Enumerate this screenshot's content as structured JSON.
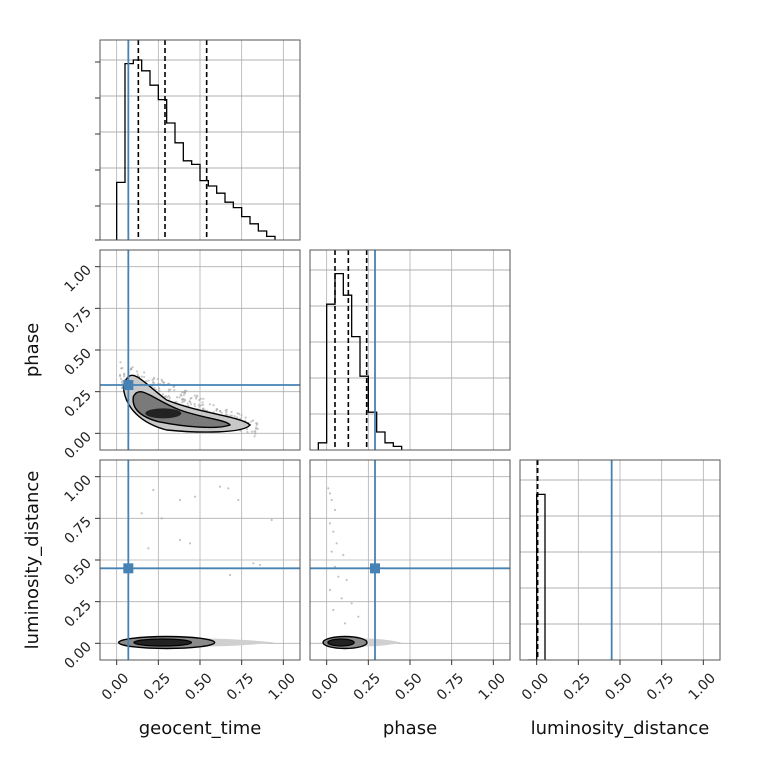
{
  "chart_data": {
    "type": "corner",
    "parameters": [
      "geocent_time",
      "phase",
      "luminosity_distance"
    ],
    "axis_labels": {
      "x": [
        "geocent_time",
        "phase",
        "luminosity_distance"
      ],
      "y": [
        "",
        "phase",
        "luminosity_distance"
      ]
    },
    "axis_range": [
      -0.1,
      1.1
    ],
    "ticks": [
      0,
      0.25,
      0.5,
      0.75,
      1
    ],
    "tick_labels": [
      "0.00",
      "0.25",
      "0.50",
      "0.75",
      "1.00"
    ],
    "truths": [
      0.07,
      0.29,
      0.45
    ],
    "quantiles": [
      [
        0.13,
        0.29,
        0.54
      ],
      [
        0.05,
        0.13,
        0.24
      ],
      [
        0.005,
        0.005,
        0.005
      ]
    ],
    "colors": {
      "truth": "#4682b4",
      "hist": "#000000",
      "grid": "#b0b0b0",
      "scatter": "#9a9a9a"
    },
    "histograms": [
      {
        "bins": [
          [
            0.0,
            0.05
          ],
          [
            0.05,
            0.1
          ],
          [
            0.1,
            0.15
          ],
          [
            0.15,
            0.2
          ],
          [
            0.2,
            0.25
          ],
          [
            0.25,
            0.3
          ],
          [
            0.3,
            0.35
          ],
          [
            0.35,
            0.4
          ],
          [
            0.4,
            0.45
          ],
          [
            0.45,
            0.5
          ],
          [
            0.5,
            0.55
          ],
          [
            0.55,
            0.6
          ],
          [
            0.6,
            0.65
          ],
          [
            0.65,
            0.7
          ],
          [
            0.7,
            0.75
          ],
          [
            0.75,
            0.8
          ],
          [
            0.8,
            0.85
          ],
          [
            0.85,
            0.9
          ],
          [
            0.9,
            0.95
          ]
        ],
        "values": [
          0.32,
          0.98,
          1.0,
          0.94,
          0.86,
          0.78,
          0.65,
          0.54,
          0.44,
          0.42,
          0.33,
          0.3,
          0.26,
          0.21,
          0.18,
          0.13,
          0.09,
          0.05,
          0.02
        ]
      },
      {
        "bins": [
          [
            -0.05,
            0.0
          ],
          [
            0.0,
            0.05
          ],
          [
            0.05,
            0.1
          ],
          [
            0.1,
            0.15
          ],
          [
            0.15,
            0.2
          ],
          [
            0.2,
            0.25
          ],
          [
            0.25,
            0.3
          ],
          [
            0.3,
            0.35
          ],
          [
            0.35,
            0.4
          ],
          [
            0.4,
            0.45
          ]
        ],
        "values": [
          0.04,
          0.81,
          0.98,
          0.86,
          0.63,
          0.41,
          0.21,
          0.1,
          0.04,
          0.02
        ]
      },
      {
        "bins": [
          [
            -0.05,
            0.0
          ],
          [
            0.0,
            0.05
          ]
        ],
        "values": [
          0.0,
          0.92
        ]
      }
    ],
    "density_regions": [
      {
        "panel": [
          1,
          0
        ],
        "x": [
          0.05,
          0.85
        ],
        "y": [
          0.0,
          0.42
        ]
      },
      {
        "panel": [
          2,
          0
        ],
        "x": [
          0.05,
          0.95
        ],
        "y": [
          -0.02,
          0.03
        ]
      },
      {
        "panel": [
          2,
          1
        ],
        "x": [
          0.0,
          0.45
        ],
        "y": [
          -0.02,
          0.03
        ]
      }
    ],
    "outliers": {
      "geocent_luminosity": [
        [
          0.22,
          0.92
        ],
        [
          0.38,
          0.86
        ],
        [
          0.47,
          0.88
        ],
        [
          0.62,
          0.94
        ],
        [
          0.67,
          0.93
        ],
        [
          0.93,
          0.74
        ],
        [
          0.82,
          0.48
        ],
        [
          0.15,
          0.78
        ],
        [
          0.27,
          0.75
        ],
        [
          0.44,
          0.6
        ],
        [
          0.38,
          0.62
        ],
        [
          0.19,
          0.57
        ],
        [
          0.73,
          0.86
        ],
        [
          0.68,
          0.41
        ],
        [
          0.86,
          0.47
        ]
      ],
      "phase_luminosity": [
        [
          0.01,
          0.93
        ],
        [
          0.02,
          0.9
        ],
        [
          0.03,
          0.86
        ],
        [
          0.05,
          0.8
        ],
        [
          0.02,
          0.72
        ],
        [
          0.04,
          0.67
        ],
        [
          0.06,
          0.6
        ],
        [
          0.03,
          0.55
        ],
        [
          0.1,
          0.53
        ],
        [
          0.05,
          0.46
        ],
        [
          0.07,
          0.4
        ],
        [
          0.12,
          0.38
        ],
        [
          0.02,
          0.32
        ],
        [
          0.09,
          0.27
        ],
        [
          0.15,
          0.24
        ],
        [
          0.04,
          0.2
        ],
        [
          0.19,
          0.16
        ],
        [
          0.11,
          0.12
        ]
      ]
    }
  }
}
